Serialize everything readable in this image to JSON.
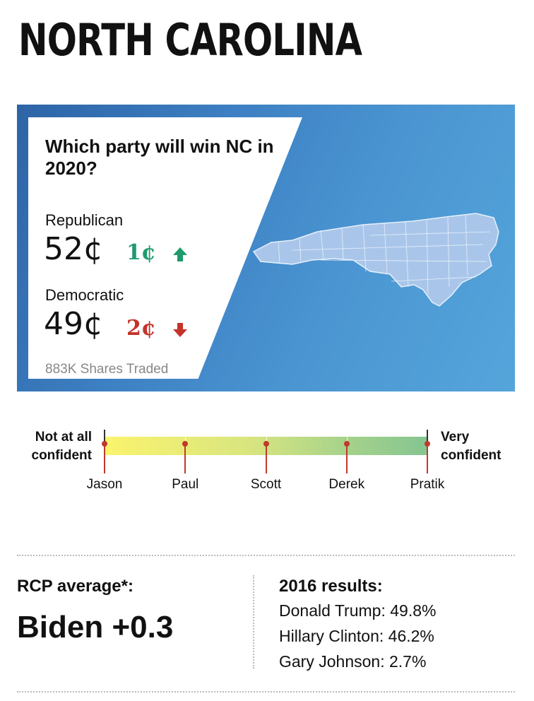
{
  "title": "NORTH CAROLINA",
  "market": {
    "question": "Which party will win NC in 2020?",
    "republican": {
      "label": "Republican",
      "price": "52¢",
      "change": "1¢",
      "direction": "up",
      "icon": "arrow-up-icon",
      "color": "#1f9a6d"
    },
    "democratic": {
      "label": "Democratic",
      "price": "49¢",
      "change": "2¢",
      "direction": "down",
      "icon": "arrow-down-icon",
      "color": "#c4342a"
    },
    "shares": "883K Shares Traded",
    "map_icon": "north-carolina-map-icon"
  },
  "confidence": {
    "low_label": "Not at all confident",
    "high_label": "Very confident",
    "people": [
      {
        "name": "Jason",
        "level": 0
      },
      {
        "name": "Paul",
        "level": 0.25
      },
      {
        "name": "Scott",
        "level": 0.5
      },
      {
        "name": "Derek",
        "level": 0.75
      },
      {
        "name": "Pratik",
        "level": 1
      }
    ]
  },
  "rcp": {
    "label": "RCP average*:",
    "value": "Biden +0.3"
  },
  "results": {
    "title": "2016 results:",
    "lines": [
      "Donald Trump: 49.8%",
      "Hillary Clinton: 46.2%",
      "Gary Johnson: 2.7%"
    ]
  },
  "colors": {
    "panel": "#3d80c3",
    "marker": "#c0392b"
  }
}
